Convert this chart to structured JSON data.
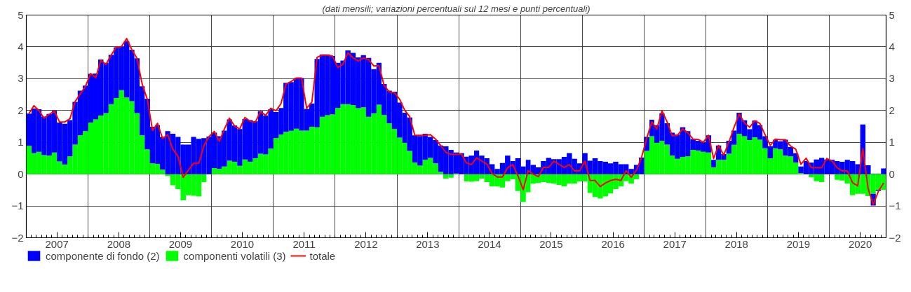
{
  "chart_data": {
    "type": "bar",
    "stacked": true,
    "subtitle": "(dati mensili; variazioni percentuali sul 12 mesi e punti percentuali)",
    "x": [
      "2007-01",
      "2007-02",
      "2007-03",
      "2007-04",
      "2007-05",
      "2007-06",
      "2007-07",
      "2007-08",
      "2007-09",
      "2007-10",
      "2007-11",
      "2007-12",
      "2008-01",
      "2008-02",
      "2008-03",
      "2008-04",
      "2008-05",
      "2008-06",
      "2008-07",
      "2008-08",
      "2008-09",
      "2008-10",
      "2008-11",
      "2008-12",
      "2009-01",
      "2009-02",
      "2009-03",
      "2009-04",
      "2009-05",
      "2009-06",
      "2009-07",
      "2009-08",
      "2009-09",
      "2009-10",
      "2009-11",
      "2009-12",
      "2010-01",
      "2010-02",
      "2010-03",
      "2010-04",
      "2010-05",
      "2010-06",
      "2010-07",
      "2010-08",
      "2010-09",
      "2010-10",
      "2010-11",
      "2010-12",
      "2011-01",
      "2011-02",
      "2011-03",
      "2011-04",
      "2011-05",
      "2011-06",
      "2011-07",
      "2011-08",
      "2011-09",
      "2011-10",
      "2011-11",
      "2011-12",
      "2012-01",
      "2012-02",
      "2012-03",
      "2012-04",
      "2012-05",
      "2012-06",
      "2012-07",
      "2012-08",
      "2012-09",
      "2012-10",
      "2012-11",
      "2012-12",
      "2013-01",
      "2013-02",
      "2013-03",
      "2013-04",
      "2013-05",
      "2013-06",
      "2013-07",
      "2013-08",
      "2013-09",
      "2013-10",
      "2013-11",
      "2013-12",
      "2014-01",
      "2014-02",
      "2014-03",
      "2014-04",
      "2014-05",
      "2014-06",
      "2014-07",
      "2014-08",
      "2014-09",
      "2014-10",
      "2014-11",
      "2014-12",
      "2015-01",
      "2015-02",
      "2015-03",
      "2015-04",
      "2015-05",
      "2015-06",
      "2015-07",
      "2015-08",
      "2015-09",
      "2015-10",
      "2015-11",
      "2015-12",
      "2016-01",
      "2016-02",
      "2016-03",
      "2016-04",
      "2016-05",
      "2016-06",
      "2016-07",
      "2016-08",
      "2016-09",
      "2016-10",
      "2016-11",
      "2016-12",
      "2017-01",
      "2017-02",
      "2017-03",
      "2017-04",
      "2017-05",
      "2017-06",
      "2017-07",
      "2017-08",
      "2017-09",
      "2017-10",
      "2017-11",
      "2017-12",
      "2018-01",
      "2018-02",
      "2018-03",
      "2018-04",
      "2018-05",
      "2018-06",
      "2018-07",
      "2018-08",
      "2018-09",
      "2018-10",
      "2018-11",
      "2018-12",
      "2019-01",
      "2019-02",
      "2019-03",
      "2019-04",
      "2019-05",
      "2019-06",
      "2019-07",
      "2019-08",
      "2019-09",
      "2019-10",
      "2019-11",
      "2019-12",
      "2020-01",
      "2020-02",
      "2020-03",
      "2020-04",
      "2020-05",
      "2020-06",
      "2020-07",
      "2020-08",
      "2020-09",
      "2020-10",
      "2020-11"
    ],
    "series": [
      {
        "name": "componenti volatili (3)",
        "color": "#00ff00",
        "values": [
          0.89,
          0.66,
          0.7,
          0.6,
          0.58,
          0.68,
          0.4,
          0.3,
          0.56,
          0.93,
          1.22,
          1.35,
          1.62,
          1.72,
          1.84,
          1.92,
          2.2,
          2.39,
          2.64,
          2.41,
          2.29,
          1.92,
          1.22,
          0.78,
          0.34,
          0.32,
          0.14,
          -0.06,
          -0.35,
          -0.47,
          -0.82,
          -0.66,
          -0.68,
          -0.7,
          -0.25,
          0.0,
          0.19,
          0.16,
          0.24,
          0.42,
          0.39,
          0.26,
          0.46,
          0.39,
          0.5,
          0.64,
          0.62,
          0.8,
          1.13,
          1.24,
          1.33,
          1.36,
          1.43,
          1.37,
          1.37,
          1.49,
          1.47,
          1.8,
          1.85,
          1.88,
          2.08,
          2.2,
          2.2,
          2.17,
          2.07,
          2.1,
          1.8,
          1.91,
          2.18,
          1.86,
          1.6,
          1.42,
          1.15,
          0.99,
          0.73,
          0.36,
          0.27,
          0.45,
          0.51,
          0.34,
          0.07,
          -0.14,
          -0.11,
          0.02,
          null,
          -0.23,
          -0.24,
          -0.22,
          -0.14,
          -0.25,
          -0.39,
          -0.39,
          -0.42,
          -0.22,
          -0.16,
          -0.53,
          -0.88,
          -0.57,
          -0.3,
          -0.28,
          -0.25,
          -0.28,
          -0.3,
          -0.34,
          -0.39,
          -0.3,
          -0.3,
          -0.23,
          -0.23,
          -0.59,
          -0.72,
          -0.77,
          -0.7,
          -0.61,
          -0.47,
          -0.39,
          -0.22,
          -0.3,
          -0.16,
          0.0,
          0.73,
          1.19,
          0.99,
          1.05,
          0.93,
          0.58,
          0.48,
          0.54,
          0.56,
          0.76,
          0.74,
          0.7,
          0.68,
          0.21,
          0.45,
          0.45,
          0.64,
          0.92,
          1.27,
          1.19,
          1.07,
          1.16,
          1.08,
          0.81,
          0.5,
          0.81,
          0.78,
          0.58,
          0.56,
          0.36,
          0.03,
          null,
          -0.1,
          -0.22,
          -0.25,
          0.0,
          0.0,
          -0.18,
          -0.2,
          -0.3,
          -0.66,
          -0.62,
          -0.62,
          -0.69,
          -0.62,
          -0.5,
          -0.49
        ]
      },
      {
        "name": "componente di fondo (2)",
        "color": "#0000ff",
        "values": [
          1.01,
          1.4,
          1.34,
          1.21,
          1.31,
          1.31,
          1.22,
          1.28,
          1.14,
          1.34,
          1.4,
          1.43,
          1.53,
          1.44,
          1.76,
          1.58,
          1.55,
          1.6,
          1.37,
          1.77,
          1.62,
          1.72,
          1.54,
          1.59,
          1.15,
          1.22,
          1.03,
          1.35,
          1.27,
          1.17,
          0.93,
          0.93,
          1.17,
          1.11,
          1.13,
          1.18,
          1.11,
          1.03,
          1.13,
          1.3,
          1.14,
          1.16,
          1.27,
          1.31,
          1.16,
          1.34,
          1.22,
          1.24,
          0.82,
          0.84,
          1.54,
          1.53,
          1.59,
          1.65,
          0.68,
          0.73,
          2.15,
          1.96,
          1.91,
          1.83,
          1.42,
          1.37,
          1.69,
          1.64,
          1.6,
          1.64,
          1.85,
          1.39,
          1.32,
          0.97,
          1.02,
          1.17,
          1.1,
          0.94,
          1.05,
          0.86,
          0.93,
          0.82,
          0.66,
          0.73,
          0.83,
          0.87,
          0.76,
          0.66,
          0.66,
          0.55,
          0.58,
          0.74,
          0.58,
          0.5,
          0.31,
          0.16,
          0.35,
          0.58,
          0.41,
          0.5,
          0.24,
          0.45,
          0.29,
          0.21,
          0.41,
          0.51,
          0.47,
          0.47,
          0.54,
          0.66,
          0.48,
          0.34,
          0.66,
          0.42,
          0.5,
          0.41,
          0.39,
          0.34,
          0.39,
          0.31,
          0.31,
          0.16,
          0.29,
          0.52,
          0.44,
          0.52,
          0.55,
          0.86,
          0.67,
          0.72,
          0.76,
          0.93,
          0.79,
          0.34,
          0.31,
          0.3,
          0.54,
          0.24,
          0.45,
          0.18,
          0.41,
          0.45,
          0.66,
          0.5,
          0.34,
          0.52,
          0.46,
          0.38,
          0.38,
          0.27,
          0.25,
          0.5,
          0.29,
          0.3,
          0.21,
          0.41,
          0.36,
          0.46,
          0.51,
          0.46,
          0.45,
          0.41,
          0.39,
          0.45,
          0.41,
          0.31,
          1.56,
          0.28,
          -0.37,
          -0.03,
          0.18
        ]
      },
      {
        "name": "totale",
        "type": "line",
        "color": "#ff0000",
        "values": [
          1.9,
          2.15,
          2.0,
          1.76,
          1.88,
          1.98,
          1.64,
          1.64,
          1.74,
          2.28,
          2.52,
          2.76,
          3.16,
          3.03,
          3.58,
          3.45,
          3.74,
          3.99,
          4.01,
          4.26,
          3.91,
          3.64,
          2.83,
          2.35,
          1.37,
          1.6,
          1.12,
          1.24,
          0.78,
          0.56,
          -0.1,
          0.12,
          0.34,
          0.34,
          0.89,
          1.18,
          1.34,
          1.03,
          1.41,
          1.76,
          1.51,
          1.42,
          1.78,
          1.66,
          1.64,
          1.96,
          1.85,
          2.07,
          1.99,
          2.22,
          2.83,
          2.91,
          3.02,
          3.02,
          2.07,
          2.27,
          3.67,
          3.74,
          3.74,
          3.71,
          3.35,
          3.45,
          3.81,
          3.65,
          3.56,
          3.65,
          3.6,
          3.4,
          3.41,
          2.79,
          2.58,
          2.56,
          2.35,
          2.01,
          1.81,
          1.22,
          1.22,
          1.22,
          1.24,
          1.1,
          0.9,
          0.68,
          0.62,
          0.62,
          0.63,
          0.35,
          0.3,
          0.51,
          0.41,
          0.32,
          0.02,
          -0.09,
          -0.09,
          0.2,
          0.3,
          -0.05,
          -0.49,
          0.11,
          0.0,
          -0.08,
          0.21,
          0.21,
          0.41,
          0.31,
          0.21,
          0.3,
          0.1,
          0.1,
          0.41,
          -0.2,
          -0.2,
          -0.39,
          -0.28,
          -0.2,
          -0.16,
          -0.2,
          0.11,
          -0.1,
          0.12,
          0.53,
          1.14,
          1.64,
          1.42,
          1.99,
          1.64,
          1.2,
          1.22,
          1.42,
          1.3,
          1.1,
          1.09,
          1.0,
          1.22,
          0.49,
          0.9,
          0.6,
          1.0,
          1.47,
          1.89,
          1.61,
          1.47,
          1.68,
          1.59,
          1.24,
          0.9,
          1.1,
          1.08,
          1.08,
          0.88,
          0.78,
          0.31,
          0.5,
          0.2,
          0.2,
          0.2,
          0.49,
          0.41,
          0.2,
          0.1,
          0.1,
          -0.27,
          -0.37,
          0.8,
          -0.45,
          -0.96,
          -0.54,
          -0.28
        ]
      }
    ],
    "xlim": [
      "2007-01-01",
      "2020-12-01"
    ],
    "xticks": [
      {
        "value": "2007-07-01",
        "label": "2007"
      },
      {
        "value": "2008-01-01",
        "label": null
      },
      {
        "value": "2008-07-01",
        "label": "2008"
      },
      {
        "value": "2009-01-01",
        "label": null
      },
      {
        "value": "2009-07-01",
        "label": "2009"
      },
      {
        "value": "2010-01-01",
        "label": null
      },
      {
        "value": "2010-07-01",
        "label": "2010"
      },
      {
        "value": "2011-01-01",
        "label": null
      },
      {
        "value": "2011-07-01",
        "label": "2011"
      },
      {
        "value": "2012-01-01",
        "label": null
      },
      {
        "value": "2012-07-01",
        "label": "2012"
      },
      {
        "value": "2013-01-01",
        "label": null
      },
      {
        "value": "2013-07-01",
        "label": "2013"
      },
      {
        "value": "2014-01-01",
        "label": null
      },
      {
        "value": "2014-07-01",
        "label": "2014"
      },
      {
        "value": "2015-01-01",
        "label": null
      },
      {
        "value": "2015-07-01",
        "label": "2015"
      },
      {
        "value": "2016-01-01",
        "label": null
      },
      {
        "value": "2016-07-01",
        "label": "2016"
      },
      {
        "value": "2017-01-01",
        "label": null
      },
      {
        "value": "2017-07-01",
        "label": "2017"
      },
      {
        "value": "2018-01-01",
        "label": null
      },
      {
        "value": "2018-07-01",
        "label": "2018"
      },
      {
        "value": "2019-01-01",
        "label": null
      },
      {
        "value": "2019-07-01",
        "label": "2019"
      },
      {
        "value": "2020-01-01",
        "label": null
      },
      {
        "value": "2020-07-01",
        "label": "2020"
      }
    ],
    "ylim": [
      -2,
      5
    ],
    "yticks": [
      {
        "value": -2,
        "label": "−2"
      },
      {
        "value": -1,
        "label": "−1"
      },
      0,
      1,
      2,
      3,
      4,
      5
    ],
    "y2lim": [
      -2,
      5
    ],
    "y2ticks": [
      {
        "value": -2,
        "label": "−2"
      },
      {
        "value": -1,
        "label": "−1"
      },
      0,
      1,
      2,
      3,
      4,
      5
    ],
    "grid": true,
    "legend": "bottom"
  }
}
